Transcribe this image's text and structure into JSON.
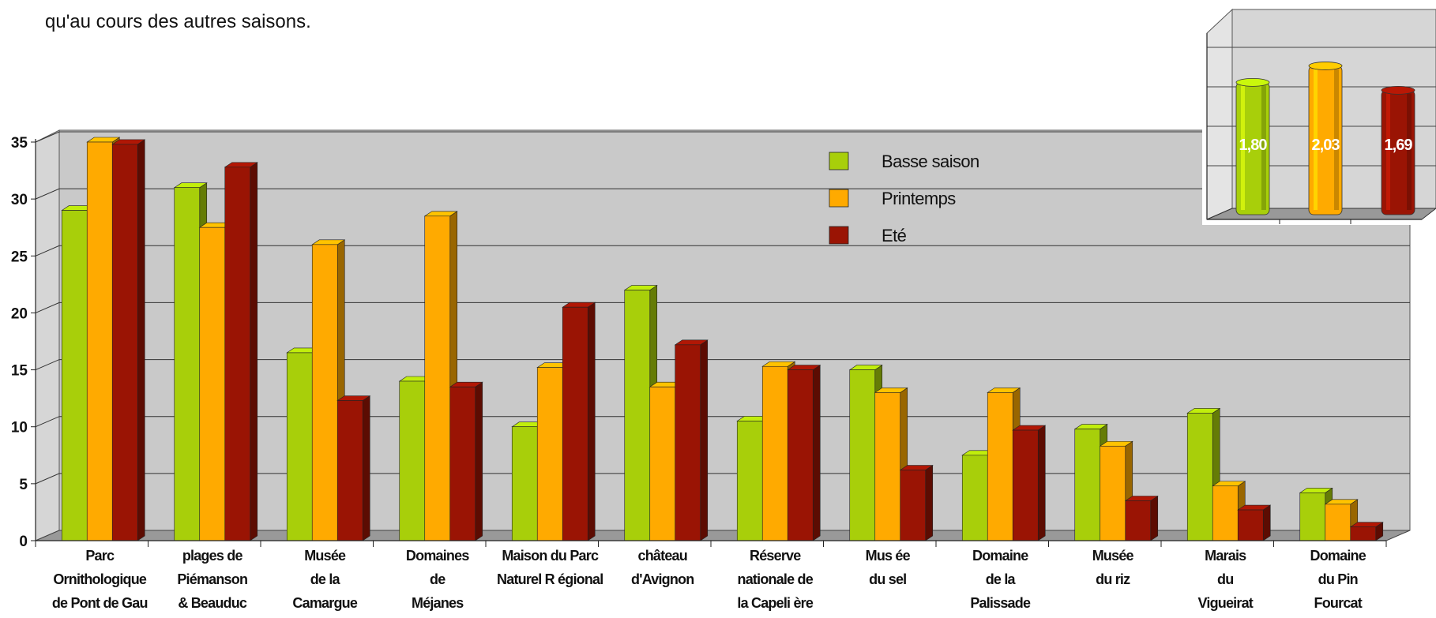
{
  "intro_text": "qu'au cours des autres saisons.",
  "colors": {
    "basse": "#a8cf0a",
    "printemps": "#ffaa00",
    "ete": "#9a1404",
    "panel": "#c9c9c9",
    "wall": "#d6d6d6",
    "floor": "#999999"
  },
  "chart_data": [
    {
      "type": "bar",
      "title": "",
      "xlabel": "",
      "ylabel": "",
      "ylim": [
        0,
        35
      ],
      "yticks": [
        "0",
        "5",
        "10",
        "15",
        "20",
        "25",
        "30",
        "35"
      ],
      "grid": true,
      "legend_position": "top-right",
      "categories": [
        [
          "Parc",
          "Ornithologique",
          "de Pont de    Gau"
        ],
        [
          "plages de",
          "Piémanson",
          "& Beauduc"
        ],
        [
          "Musée",
          "de la",
          "Camargue"
        ],
        [
          "Domaines",
          "de",
          "Méjanes"
        ],
        [
          "Maison du Parc",
          "Naturel R    égional"
        ],
        [
          "château",
          "d'Avignon"
        ],
        [
          "Réserve",
          "nationale de",
          "la Capeli   ère"
        ],
        [
          "Mus ée",
          "du sel"
        ],
        [
          "Domaine",
          "de la",
          "Palissade"
        ],
        [
          "Musée",
          "du riz"
        ],
        [
          "Marais",
          "du",
          "Vigueirat"
        ],
        [
          "Domaine",
          "du Pin",
          "Fourcat"
        ]
      ],
      "series": [
        {
          "name": "Basse saison",
          "values": [
            29,
            31,
            16.5,
            14,
            10,
            22,
            10.5,
            15,
            7.5,
            9.8,
            11.2,
            4.2
          ]
        },
        {
          "name": "Printemps",
          "values": [
            35,
            27.5,
            26,
            28.5,
            15.2,
            13.5,
            15.3,
            13,
            13,
            8.3,
            4.8,
            3.2
          ]
        },
        {
          "name": "Eté",
          "values": [
            34.8,
            32.8,
            12.3,
            13.5,
            20.5,
            17.2,
            15,
            6.2,
            9.7,
            3.5,
            2.7,
            1.2
          ]
        }
      ]
    },
    {
      "type": "bar",
      "title": "",
      "categories": [
        "Basse saison",
        "Printemps",
        "Eté"
      ],
      "values": [
        1.8,
        2.03,
        1.69
      ],
      "data_labels": [
        "1,80",
        "2,03",
        "1,69"
      ],
      "ylim": [
        0,
        2.0
      ],
      "grid": true
    }
  ]
}
